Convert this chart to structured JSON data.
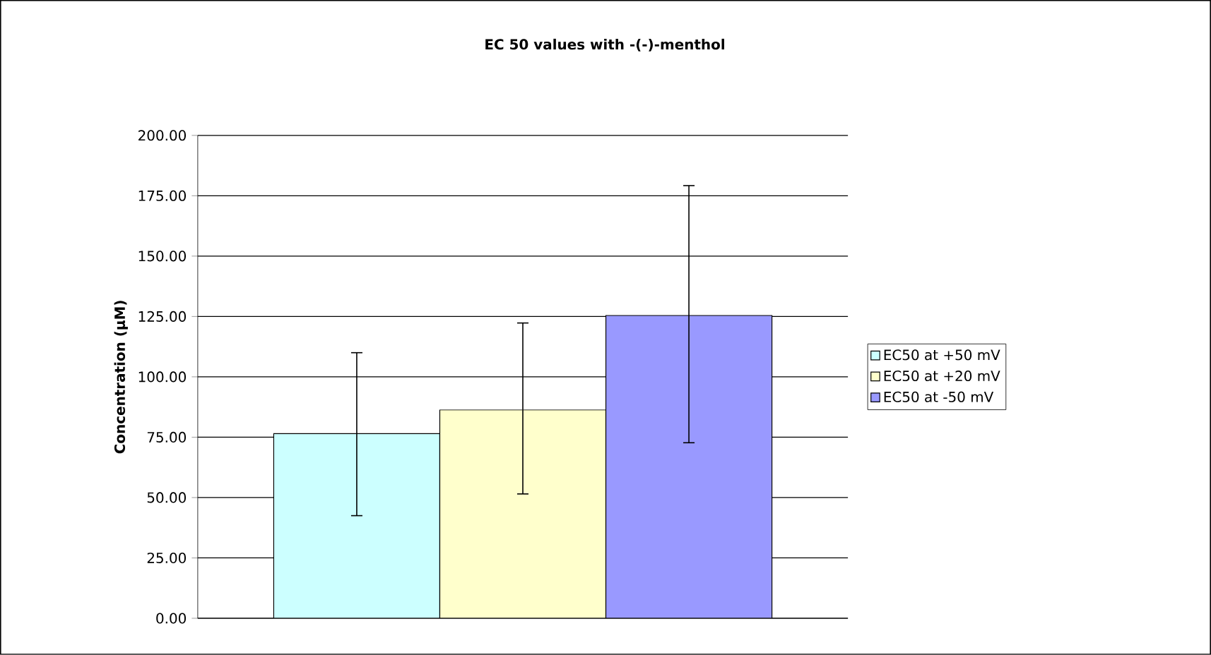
{
  "chart_data": {
    "type": "bar",
    "title": "EC 50 values with -(-)-menthol",
    "ylabel": "Concentration (µM)",
    "categories": [
      null
    ],
    "series": [
      {
        "name": "EC50 at +50 mV",
        "color": "#ccffff",
        "values": [
          76.5
        ],
        "errors": [
          [
            42.5,
            110
          ]
        ]
      },
      {
        "name": "EC50 at +20 mV",
        "color": "#ffffcc",
        "values": [
          86.3
        ],
        "errors": [
          [
            51.5,
            122.3
          ]
        ]
      },
      {
        "name": "EC50 at -50 mV",
        "color": "#9999ff",
        "values": [
          125.4
        ],
        "errors": [
          [
            72.7,
            179.2
          ]
        ]
      }
    ],
    "ylim": [
      0,
      200
    ],
    "yticks": [
      {
        "value": 0,
        "label": "0.00"
      },
      {
        "value": 25,
        "label": "25.00"
      },
      {
        "value": 50,
        "label": "50.00"
      },
      {
        "value": 75,
        "label": "75.00"
      },
      {
        "value": 100,
        "label": "100.00"
      },
      {
        "value": 125,
        "label": "125.00"
      },
      {
        "value": 150,
        "label": "150.00"
      },
      {
        "value": 175,
        "label": "175.00"
      },
      {
        "value": 200,
        "label": "200.00"
      }
    ],
    "grid": "y",
    "legend": "right"
  }
}
